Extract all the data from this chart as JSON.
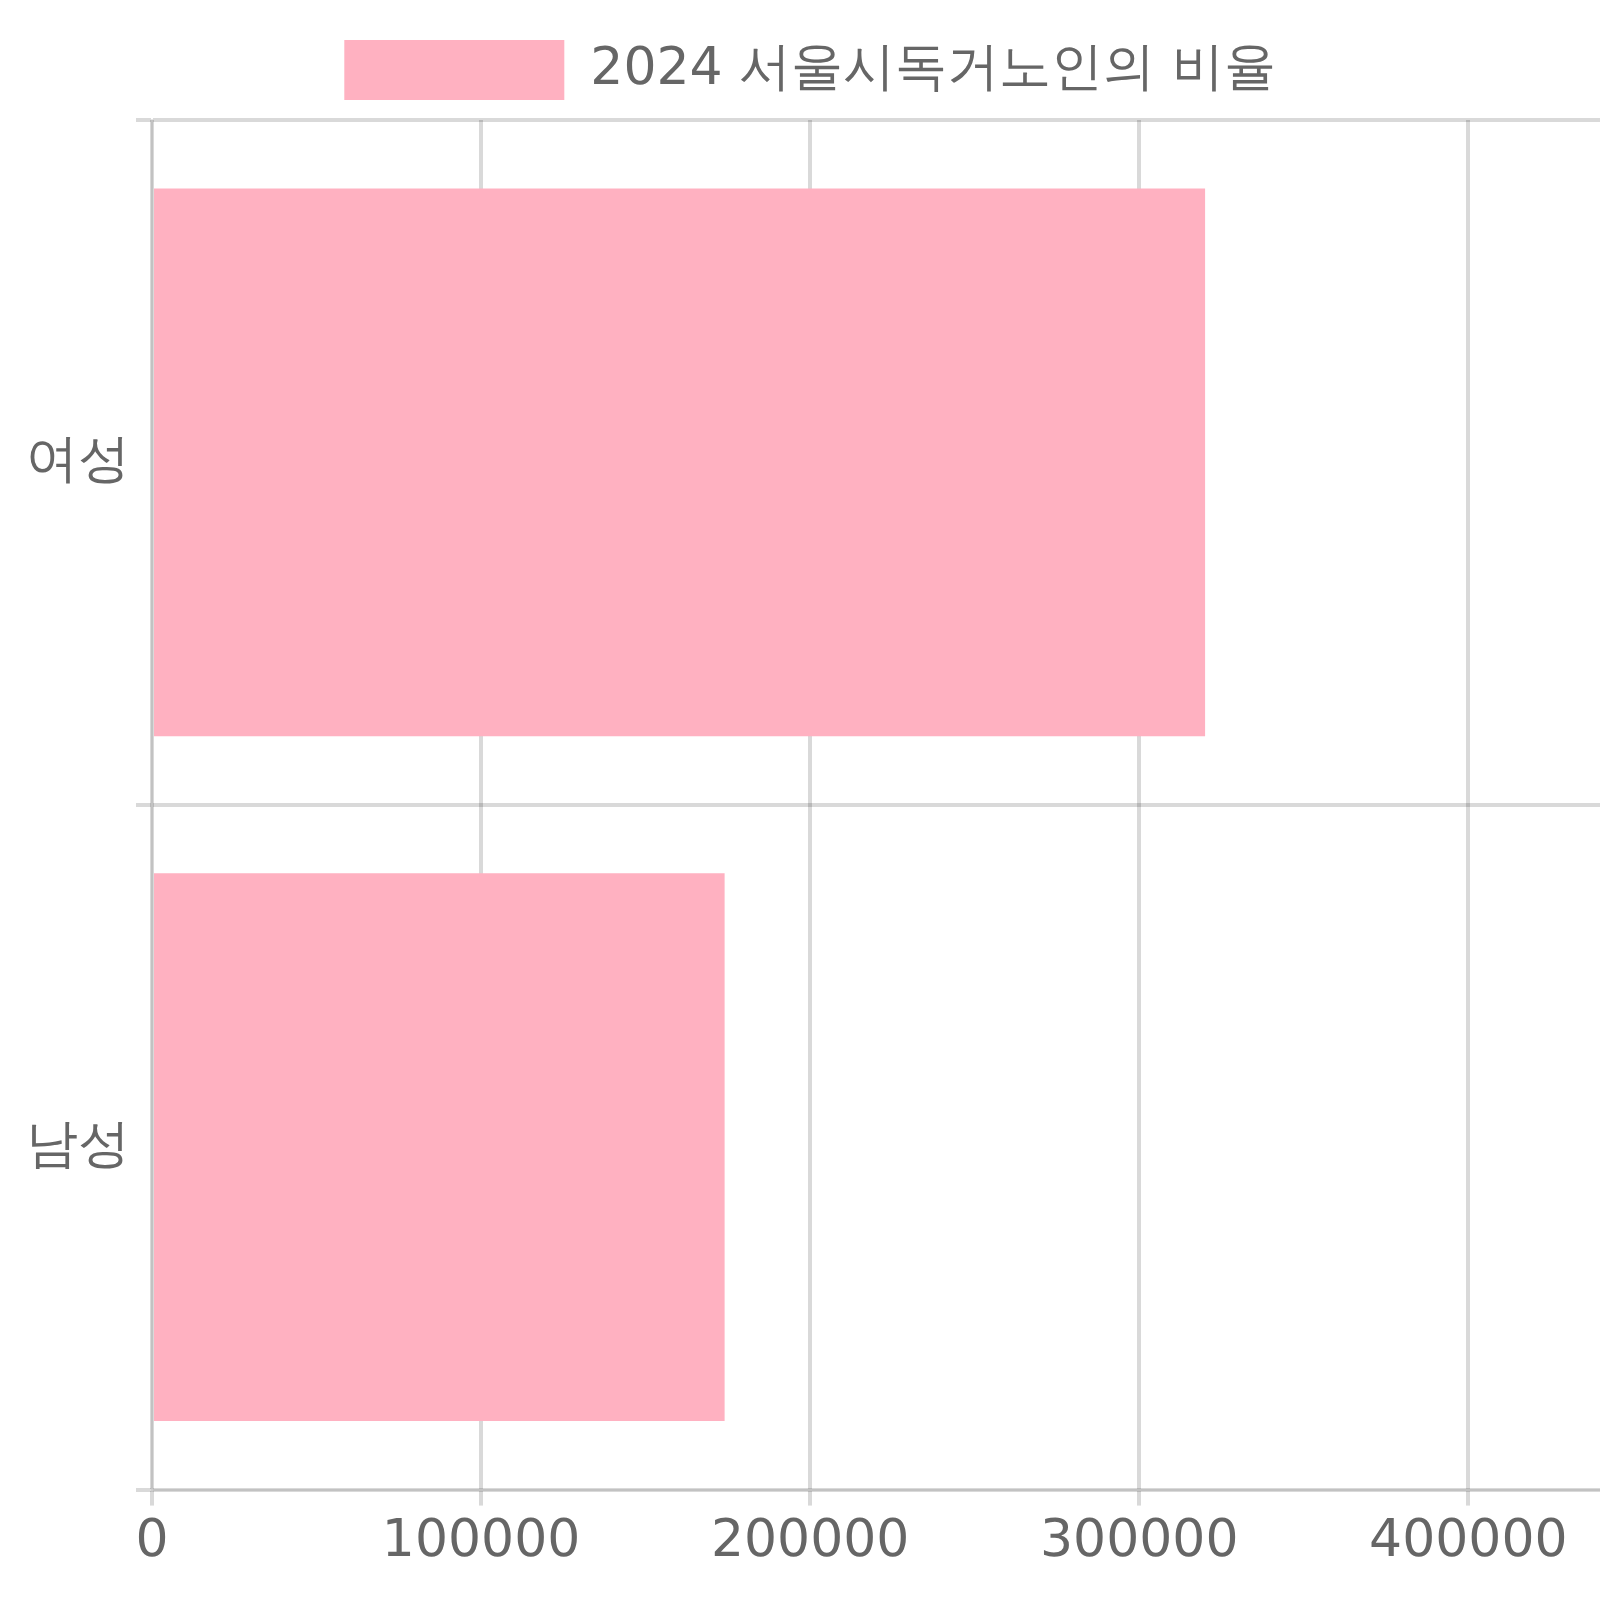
{
  "chart_data": {
    "type": "bar",
    "orientation": "horizontal",
    "categories": [
      "여성",
      "남성"
    ],
    "series": [
      {
        "name": "2024 서울시독거노인의 비율",
        "color": "#ffb1c1",
        "values": [
          320000,
          174000
        ]
      }
    ],
    "xlim": [
      0,
      440000
    ],
    "xticks": [
      0,
      100000,
      200000,
      300000,
      400000
    ],
    "grid": true,
    "legend": "top"
  }
}
